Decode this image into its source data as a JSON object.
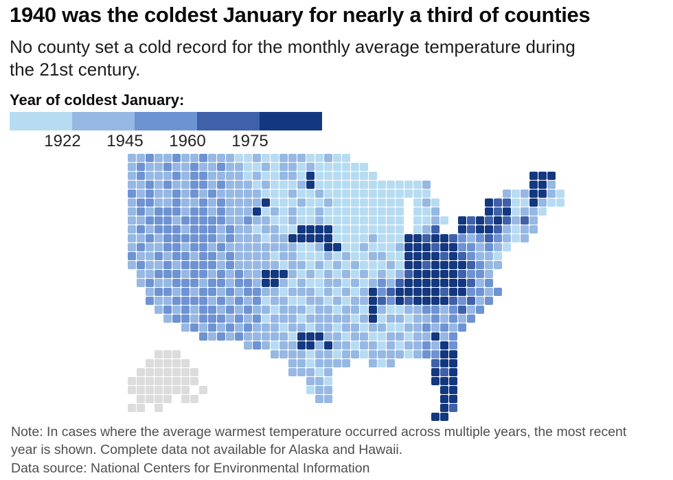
{
  "header": {
    "title": "1940 was the coldest January for nearly a third of counties",
    "subtitle": "No county set a cold record for the monthly average temperature during the 21st century."
  },
  "legend": {
    "title": "Year of coldest January:",
    "ticks": [
      "1922",
      "1945",
      "1960",
      "1975"
    ],
    "colors": [
      "#b7dcf2",
      "#96b8e3",
      "#6e93d3",
      "#3f61aa",
      "#14387f"
    ]
  },
  "chart_data": {
    "type": "heatmap",
    "subtype": "us-county-choropleth",
    "title": "Year of coldest January by U.S. county",
    "legend_breaks": [
      "1922",
      "1945",
      "1960",
      "1975"
    ],
    "legend_position": "top-left",
    "palette": {
      "1": "#b7dcf2",
      "2": "#96b8e3",
      "3": "#6e93d3",
      "4": "#3f61aa",
      "5": "#14387f",
      "a": "#dcdcdc"
    },
    "palette_meaning": {
      "1": "earliest years (before ~1922)",
      "2": "~1922-1945",
      "3": "~1945-1960",
      "4": "~1960-1975",
      "5": "latest years (after ~1975)",
      "a": "no data (Alaska / Hawaii)"
    },
    "grid_cols": 49,
    "grid_rows": [
      "2232232232221121122211211........................",
      "232232232232211212212111111......................",
      "2322232332222121122151111111.................555.",
      "2232322332322212111251111111111112...........552.",
      "3232232323222221112112111111111111........2125521",
      "2332232232322225111211211111111.121.....544115211",
      "2323332332322251212112111111111.112.....5451221..",
      "2233323333322322112112111111111.1121.545454242...",
      "2323332333232212211555511111111.124..545542122...",
      "223233333323222122555551111211155455432343212....",
      "2322332332322222222112551121112555455332321......",
      "322323323323222212211121211221155554543221.......",
      "232232333323222221221212121112155455554322.......",
      ".2233323323232255521212121212124555554332........",
      ".2322333233233255212112212123245555555423........",
      "..2332323323233221222121212534555554553323.......",
      "..322333323232312211221212254354555543423........",
      "...2323233232322122212212215211223323423.........",
      "....23323332323122212222212512212232323..........",
      "......23232323222122122122122112232323...........",
      "........32323222221555221221122122523............",
      ".............232122552522122121223253............",
      "...aaa..........222212212212222123355............",
      "..aaaaa...........2212222..212....455............",
      ".aaaaaaa..........22212...........545............",
      "aaaaaaaa............221...........555............",
      "aaaaaaa.a...........122............55............",
      ".aaaa.aa.............22............55............",
      "aa.a...............................54............",
      "..................................55............."
    ]
  },
  "footer": {
    "note": "Note: In cases where the average warmest temperature occurred across multiple years, the most recent year is shown. Complete data not available for Alaska and Hawaii.",
    "source": "Data source: National Centers for Environmental Information"
  }
}
